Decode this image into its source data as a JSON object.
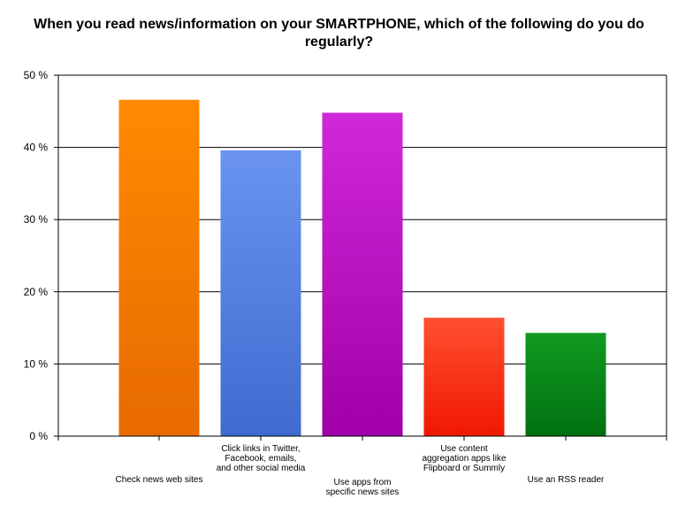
{
  "chart_data": {
    "type": "bar",
    "title": "When you read news/information on your SMARTPHONE, which of the following do you do regularly?",
    "xlabel": "",
    "ylabel": "",
    "ylim": [
      0,
      50
    ],
    "yticks": [
      0,
      10,
      20,
      30,
      40,
      50
    ],
    "ytick_suffix": " %",
    "grid": true,
    "categories": [
      "Check news web sites",
      "Click links in Twitter, Facebook, emails, and other social media",
      "Use apps from specific news sites",
      "Use content aggregation apps like Flipboard or Summly",
      "Use an RSS reader"
    ],
    "category_label_lines": [
      [
        "Check news web sites"
      ],
      [
        "Click links in Twitter,",
        "Facebook, emails,",
        "and other social media"
      ],
      [
        "Use apps from",
        "specific news sites"
      ],
      [
        "Use content",
        "aggregation apps like",
        "Flipboard or Summly"
      ],
      [
        "Use an RSS reader"
      ]
    ],
    "values": [
      46.6,
      39.6,
      44.8,
      16.4,
      14.3
    ],
    "colors": [
      [
        "#ff8a00",
        "#e86a00"
      ],
      [
        "#6a94f0",
        "#3f6bd0"
      ],
      [
        "#d028d8",
        "#a000a8"
      ],
      [
        "#ff5030",
        "#f01800"
      ],
      [
        "#109a20",
        "#007010"
      ]
    ]
  }
}
